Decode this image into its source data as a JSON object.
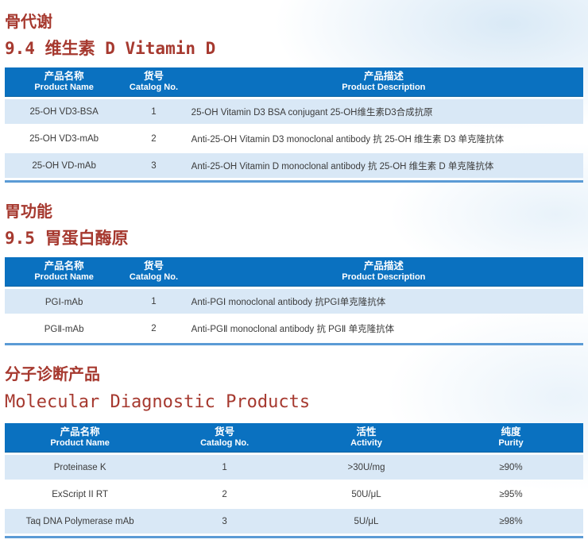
{
  "colors": {
    "heading_red": "#a6392f",
    "table_header_blue": "#0a71c0",
    "row_stripe_blue": "#d9e8f6",
    "table_bottom_border_blue": "#5b9bd5"
  },
  "sections": [
    {
      "heading": "骨代谢",
      "subheading": "9.4 维生素 D Vitamin D",
      "table": {
        "columns": [
          {
            "cn": "产品名称",
            "en": "Product Name"
          },
          {
            "cn": "货号",
            "en": "Catalog No."
          },
          {
            "cn": "产品描述",
            "en": "Product Description"
          }
        ],
        "rows": [
          {
            "name": "25-OH VD3-BSA",
            "catalog": "1",
            "description": "25-OH Vitamin D3 BSA conjugant 25-OH维生素D3合成抗原"
          },
          {
            "name": "25-OH VD3-mAb",
            "catalog": "2",
            "description": "Anti-25-OH Vitamin D3 monoclonal antibody 抗 25-OH 维生素 D3 单克隆抗体"
          },
          {
            "name": "25-OH VD-mAb",
            "catalog": "3",
            "description": "Anti-25-OH Vitamin D monoclonal antibody 抗 25-OH 维生素 D 单克隆抗体"
          }
        ]
      }
    },
    {
      "heading": "胃功能",
      "subheading": "9.5 胃蛋白酶原",
      "table": {
        "columns": [
          {
            "cn": "产品名称",
            "en": "Product Name"
          },
          {
            "cn": "货号",
            "en": "Catalog No."
          },
          {
            "cn": "产品描述",
            "en": "Product Description"
          }
        ],
        "rows": [
          {
            "name": "PGⅠ-mAb",
            "catalog": "1",
            "description": "Anti-PGⅠ monoclonal antibody 抗PGⅠ单克隆抗体"
          },
          {
            "name": "PGⅡ-mAb",
            "catalog": "2",
            "description": "Anti-PGⅡ monoclonal antibody 抗 PGⅡ 单克隆抗体"
          }
        ]
      }
    },
    {
      "heading": "分子诊断产品",
      "subheading": "Molecular Diagnostic Products",
      "table": {
        "columns": [
          {
            "cn": "产品名称",
            "en": "Product Name"
          },
          {
            "cn": "货号",
            "en": "Catalog No."
          },
          {
            "cn": "活性",
            "en": "Activity"
          },
          {
            "cn": "纯度",
            "en": "Purity"
          }
        ],
        "rows": [
          {
            "name": "Proteinase K",
            "catalog": "1",
            "activity": ">30U/mg",
            "purity": "≥90%"
          },
          {
            "name": "ExScript II RT",
            "catalog": "2",
            "activity": "50U/μL",
            "purity": "≥95%"
          },
          {
            "name": "Taq DNA Polymerase mAb",
            "catalog": "3",
            "activity": "5U/μL",
            "purity": "≥98%"
          }
        ]
      }
    }
  ]
}
